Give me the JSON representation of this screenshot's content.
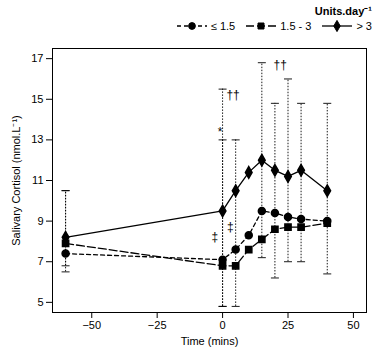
{
  "chart_data": {
    "type": "line",
    "xlabel": "Time (mins)",
    "ylabel": "Salivary Cortisol (nmol.L⁻¹)",
    "legend_title": "Units.day⁻¹",
    "legend": "top",
    "xlim": [
      -65,
      55
    ],
    "ylim": [
      4.5,
      17.5
    ],
    "xticks": [
      -50,
      -25,
      0,
      25,
      50
    ],
    "yticks": [
      5,
      7,
      9,
      11,
      13,
      15,
      17
    ],
    "x": [
      -60,
      0,
      5,
      10,
      15,
      20,
      25,
      30,
      40
    ],
    "series": [
      {
        "name": "≤ 1.5",
        "color": "#000000",
        "marker": "circle",
        "line_style": "dashed",
        "values": [
          7.4,
          7.1,
          7.6,
          8.3,
          9.5,
          9.4,
          9.2,
          9.1,
          9.0
        ],
        "error_minus": [
          0.9,
          null,
          2.8,
          null,
          null,
          null,
          null,
          null,
          null
        ],
        "error_plus": [
          3.1,
          null,
          5.4,
          null,
          null,
          null,
          null,
          null,
          null
        ]
      },
      {
        "name": "1.5 - 3",
        "color": "#000000",
        "marker": "square",
        "line_style": "long_dashed",
        "values": [
          7.9,
          6.8,
          6.8,
          7.6,
          8.1,
          8.6,
          8.7,
          8.7,
          8.9
        ],
        "error_minus": [
          null,
          2.0,
          null,
          null,
          null,
          2.4,
          null,
          null,
          2.5
        ],
        "error_plus": [
          null,
          6.2,
          null,
          null,
          null,
          6.2,
          null,
          null,
          5.9
        ]
      },
      {
        "name": "> 3",
        "color": "#000000",
        "marker": "diamond",
        "line_style": "solid",
        "values": [
          8.2,
          9.5,
          10.5,
          11.4,
          12.0,
          11.5,
          11.2,
          11.5,
          10.5
        ],
        "error_minus": [
          1.4,
          4.7,
          null,
          null,
          4.8,
          null,
          4.2,
          4.5,
          null
        ],
        "error_plus": [
          2.3,
          6.0,
          null,
          null,
          4.8,
          null,
          4.8,
          3.3,
          null
        ]
      }
    ],
    "annotations": [
      {
        "text": "*",
        "x": -1,
        "y": 13.2
      },
      {
        "text": "††",
        "x": 4,
        "y": 15.0
      },
      {
        "text": "††",
        "x": 22,
        "y": 16.5
      },
      {
        "text": "‡",
        "x": -3,
        "y": 8.0
      },
      {
        "text": "‡",
        "x": 3,
        "y": 8.5
      }
    ]
  }
}
